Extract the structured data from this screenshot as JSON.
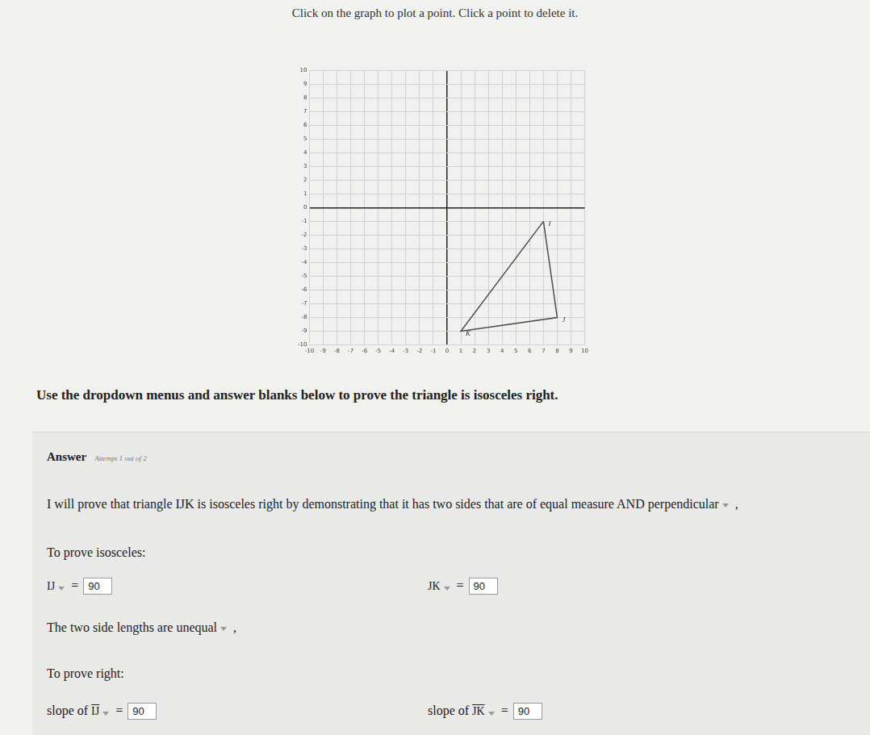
{
  "header": {
    "instruction": "Click on the graph to plot a point. Click a point to delete it."
  },
  "chart_data": {
    "type": "scatter",
    "x": [
      7,
      8,
      1
    ],
    "y": [
      -1,
      -8,
      -9
    ],
    "point_labels": [
      "I",
      "J",
      "K"
    ],
    "xlim": [
      -10,
      10
    ],
    "ylim": [
      -10,
      10
    ],
    "xticks": [
      -10,
      -9,
      -8,
      -7,
      -6,
      -5,
      -4,
      -3,
      -2,
      -1,
      0,
      1,
      2,
      3,
      4,
      5,
      6,
      7,
      8,
      9,
      10
    ],
    "yticks": [
      -10,
      -9,
      -8,
      -7,
      -6,
      -5,
      -4,
      -3,
      -2,
      -1,
      0,
      1,
      2,
      3,
      4,
      5,
      6,
      7,
      8,
      9,
      10
    ],
    "grid": true,
    "color": "#4d4d4d",
    "line_style": "solid",
    "marker": "none"
  },
  "prompt": "Use the dropdown menus and answer blanks below to prove the triangle is isosceles right.",
  "answer": {
    "title": "Answer",
    "attempt": "Attempt 1 out of 2",
    "statement": {
      "before": "I will prove that triangle IJK is isosceles right by demonstrating that",
      "dropdown": "it has two sides that are of equal measure AND perpendicular",
      "after": ","
    },
    "isosceles": {
      "heading": "To prove isosceles:",
      "rows": [
        {
          "label": "IJ",
          "equals": "=",
          "value": 90
        },
        {
          "label": "JK",
          "equals": "=",
          "value": 90
        }
      ],
      "conclusion": {
        "before": "The two side lengths are",
        "dropdown": "unequal",
        "after": ","
      }
    },
    "right": {
      "heading": "To prove right:",
      "rows": [
        {
          "prefix": "slope of",
          "label": "IJ",
          "equals": "=",
          "value": 90
        },
        {
          "prefix": "slope of",
          "label": "JK",
          "equals": "=",
          "value": 90
        }
      ]
    }
  }
}
